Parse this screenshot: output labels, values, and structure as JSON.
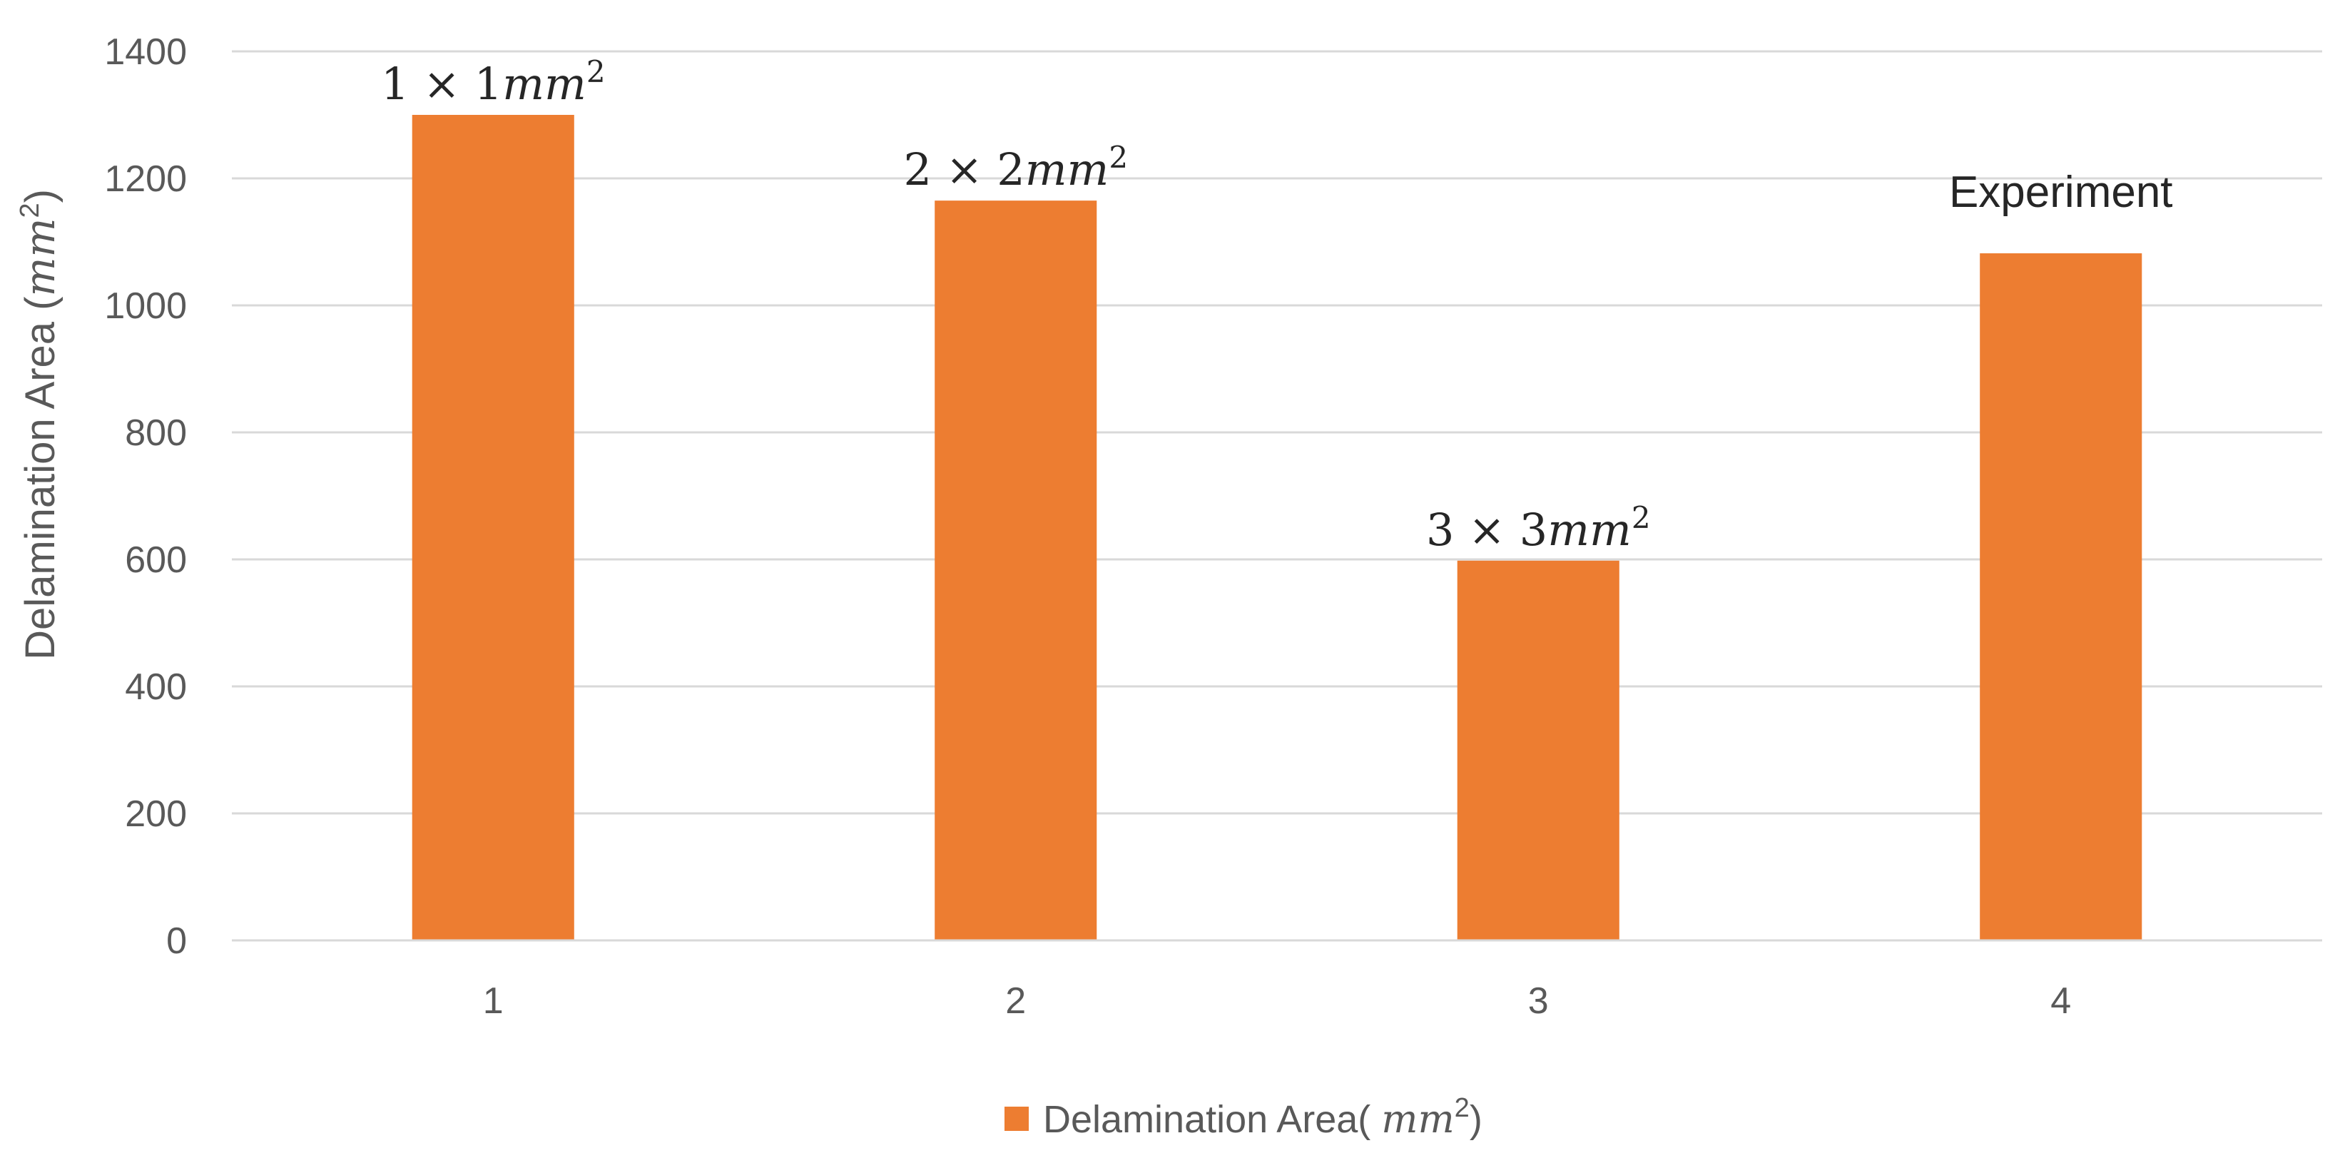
{
  "chart_data": {
    "type": "bar",
    "categories": [
      "1",
      "2",
      "3",
      "4"
    ],
    "series": [
      {
        "name": "Delamination Area( mm²)",
        "values": [
          1300,
          1165,
          598,
          1082
        ],
        "color": "#ED7D31"
      }
    ],
    "ylabel": "Delamination Area (mm²)",
    "xlabel": "",
    "ylim": [
      0,
      1400
    ],
    "yticks": [
      "0",
      "200",
      "400",
      "600",
      "800",
      "1000",
      "1200",
      "1400"
    ],
    "grid": true,
    "legend_position": "bottom",
    "bar_annotations": [
      "1 × 1mm²",
      "2 × 2mm²",
      "3 × 3mm²",
      "Experiment"
    ]
  }
}
